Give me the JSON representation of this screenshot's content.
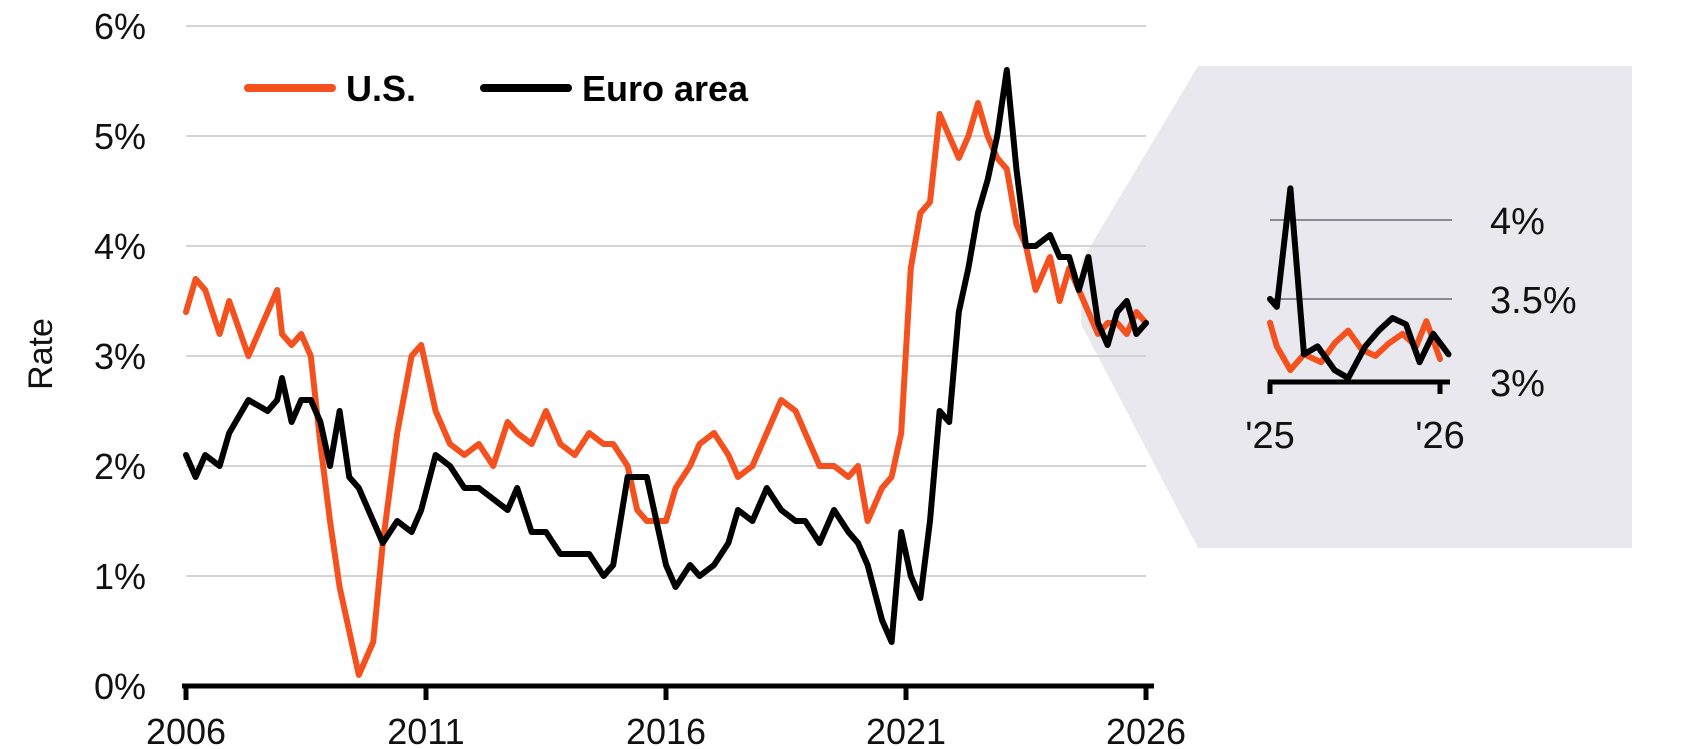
{
  "chart_data": [
    {
      "type": "line",
      "ylabel": "Rate",
      "xlim": [
        2006,
        2026
      ],
      "ylim": [
        0,
        6
      ],
      "x_ticks": [
        2006,
        2011,
        2016,
        2021,
        2026
      ],
      "x_tick_labels": [
        "2006",
        "2011",
        "2016",
        "2021",
        "2026"
      ],
      "y_ticks": [
        0,
        1,
        2,
        3,
        4,
        5,
        6
      ],
      "y_tick_labels": [
        "0%",
        "1%",
        "2%",
        "3%",
        "4%",
        "5%",
        "6%"
      ],
      "grid": true,
      "legend_position": "top-left",
      "series": [
        {
          "name": "U.S.",
          "color": "#f4511e",
          "points": [
            [
              2006.0,
              3.4
            ],
            [
              2006.2,
              3.7
            ],
            [
              2006.4,
              3.6
            ],
            [
              2006.7,
              3.2
            ],
            [
              2006.9,
              3.5
            ],
            [
              2007.3,
              3.0
            ],
            [
              2007.7,
              3.4
            ],
            [
              2007.9,
              3.6
            ],
            [
              2008.0,
              3.2
            ],
            [
              2008.2,
              3.1
            ],
            [
              2008.4,
              3.2
            ],
            [
              2008.6,
              3.0
            ],
            [
              2008.8,
              2.2
            ],
            [
              2009.0,
              1.5
            ],
            [
              2009.2,
              0.9
            ],
            [
              2009.4,
              0.5
            ],
            [
              2009.6,
              0.1
            ],
            [
              2009.9,
              0.4
            ],
            [
              2010.1,
              1.3
            ],
            [
              2010.4,
              2.3
            ],
            [
              2010.7,
              3.0
            ],
            [
              2010.9,
              3.1
            ],
            [
              2011.2,
              2.5
            ],
            [
              2011.5,
              2.2
            ],
            [
              2011.8,
              2.1
            ],
            [
              2012.1,
              2.2
            ],
            [
              2012.4,
              2.0
            ],
            [
              2012.7,
              2.4
            ],
            [
              2012.9,
              2.3
            ],
            [
              2013.2,
              2.2
            ],
            [
              2013.5,
              2.5
            ],
            [
              2013.8,
              2.2
            ],
            [
              2014.1,
              2.1
            ],
            [
              2014.4,
              2.3
            ],
            [
              2014.7,
              2.2
            ],
            [
              2014.9,
              2.2
            ],
            [
              2015.2,
              2.0
            ],
            [
              2015.4,
              1.6
            ],
            [
              2015.6,
              1.5
            ],
            [
              2016.0,
              1.5
            ],
            [
              2016.2,
              1.8
            ],
            [
              2016.5,
              2.0
            ],
            [
              2016.7,
              2.2
            ],
            [
              2017.0,
              2.3
            ],
            [
              2017.3,
              2.1
            ],
            [
              2017.5,
              1.9
            ],
            [
              2017.8,
              2.0
            ],
            [
              2018.1,
              2.3
            ],
            [
              2018.4,
              2.6
            ],
            [
              2018.7,
              2.5
            ],
            [
              2018.9,
              2.3
            ],
            [
              2019.2,
              2.0
            ],
            [
              2019.5,
              2.0
            ],
            [
              2019.8,
              1.9
            ],
            [
              2020.0,
              2.0
            ],
            [
              2020.2,
              1.5
            ],
            [
              2020.5,
              1.8
            ],
            [
              2020.7,
              1.9
            ],
            [
              2020.9,
              2.3
            ],
            [
              2021.1,
              3.8
            ],
            [
              2021.3,
              4.3
            ],
            [
              2021.5,
              4.4
            ],
            [
              2021.7,
              5.2
            ],
            [
              2021.9,
              5.0
            ],
            [
              2022.1,
              4.8
            ],
            [
              2022.3,
              5.0
            ],
            [
              2022.5,
              5.3
            ],
            [
              2022.7,
              5.0
            ],
            [
              2022.9,
              4.8
            ],
            [
              2023.1,
              4.7
            ],
            [
              2023.3,
              4.2
            ],
            [
              2023.5,
              4.0
            ],
            [
              2023.7,
              3.6
            ],
            [
              2024.0,
              3.9
            ],
            [
              2024.2,
              3.5
            ],
            [
              2024.4,
              3.8
            ],
            [
              2024.6,
              3.6
            ],
            [
              2024.8,
              3.4
            ],
            [
              2025.0,
              3.2
            ],
            [
              2025.2,
              3.3
            ],
            [
              2025.4,
              3.3
            ],
            [
              2025.6,
              3.2
            ],
            [
              2025.8,
              3.4
            ],
            [
              2026.0,
              3.3
            ]
          ]
        },
        {
          "name": "Euro area",
          "color": "#000000",
          "points": [
            [
              2006.0,
              2.1
            ],
            [
              2006.2,
              1.9
            ],
            [
              2006.4,
              2.1
            ],
            [
              2006.7,
              2.0
            ],
            [
              2006.9,
              2.3
            ],
            [
              2007.3,
              2.6
            ],
            [
              2007.7,
              2.5
            ],
            [
              2007.9,
              2.6
            ],
            [
              2008.0,
              2.8
            ],
            [
              2008.2,
              2.4
            ],
            [
              2008.4,
              2.6
            ],
            [
              2008.6,
              2.6
            ],
            [
              2008.8,
              2.4
            ],
            [
              2009.0,
              2.0
            ],
            [
              2009.2,
              2.5
            ],
            [
              2009.4,
              1.9
            ],
            [
              2009.6,
              1.8
            ],
            [
              2009.9,
              1.5
            ],
            [
              2010.1,
              1.3
            ],
            [
              2010.4,
              1.5
            ],
            [
              2010.7,
              1.4
            ],
            [
              2010.9,
              1.6
            ],
            [
              2011.2,
              2.1
            ],
            [
              2011.5,
              2.0
            ],
            [
              2011.8,
              1.8
            ],
            [
              2012.1,
              1.8
            ],
            [
              2012.4,
              1.7
            ],
            [
              2012.7,
              1.6
            ],
            [
              2012.9,
              1.8
            ],
            [
              2013.2,
              1.4
            ],
            [
              2013.5,
              1.4
            ],
            [
              2013.8,
              1.2
            ],
            [
              2014.1,
              1.2
            ],
            [
              2014.4,
              1.2
            ],
            [
              2014.7,
              1.0
            ],
            [
              2014.9,
              1.1
            ],
            [
              2015.2,
              1.9
            ],
            [
              2015.4,
              1.9
            ],
            [
              2015.6,
              1.9
            ],
            [
              2016.0,
              1.1
            ],
            [
              2016.2,
              0.9
            ],
            [
              2016.5,
              1.1
            ],
            [
              2016.7,
              1.0
            ],
            [
              2017.0,
              1.1
            ],
            [
              2017.3,
              1.3
            ],
            [
              2017.5,
              1.6
            ],
            [
              2017.8,
              1.5
            ],
            [
              2018.1,
              1.8
            ],
            [
              2018.4,
              1.6
            ],
            [
              2018.7,
              1.5
            ],
            [
              2018.9,
              1.5
            ],
            [
              2019.2,
              1.3
            ],
            [
              2019.5,
              1.6
            ],
            [
              2019.8,
              1.4
            ],
            [
              2020.0,
              1.3
            ],
            [
              2020.2,
              1.1
            ],
            [
              2020.5,
              0.6
            ],
            [
              2020.7,
              0.4
            ],
            [
              2020.9,
              1.4
            ],
            [
              2021.1,
              1.0
            ],
            [
              2021.3,
              0.8
            ],
            [
              2021.5,
              1.5
            ],
            [
              2021.7,
              2.5
            ],
            [
              2021.9,
              2.4
            ],
            [
              2022.1,
              3.4
            ],
            [
              2022.3,
              3.8
            ],
            [
              2022.5,
              4.3
            ],
            [
              2022.7,
              4.6
            ],
            [
              2022.9,
              5.0
            ],
            [
              2023.1,
              5.6
            ],
            [
              2023.3,
              4.7
            ],
            [
              2023.5,
              4.0
            ],
            [
              2023.7,
              4.0
            ],
            [
              2024.0,
              4.1
            ],
            [
              2024.2,
              3.9
            ],
            [
              2024.4,
              3.9
            ],
            [
              2024.6,
              3.6
            ],
            [
              2024.8,
              3.9
            ],
            [
              2025.0,
              3.3
            ],
            [
              2025.2,
              3.1
            ],
            [
              2025.4,
              3.4
            ],
            [
              2025.6,
              3.5
            ],
            [
              2025.8,
              3.2
            ],
            [
              2026.0,
              3.3
            ]
          ]
        }
      ]
    },
    {
      "type": "line",
      "title": "",
      "xlim": [
        2025,
        2026
      ],
      "ylim": [
        3,
        4
      ],
      "x_ticks": [
        2025,
        2026
      ],
      "x_tick_labels": [
        "'25",
        "'26"
      ],
      "y_ticks": [
        3,
        3.5,
        4
      ],
      "y_tick_labels": [
        "3%",
        "3.5%",
        "4%"
      ],
      "grid_lines_at": [
        3.5,
        4
      ],
      "series": [
        {
          "name": "U.S.",
          "color": "#f4511e",
          "points": [
            [
              2025.0,
              3.35
            ],
            [
              2025.04,
              3.2
            ],
            [
              2025.12,
              3.05
            ],
            [
              2025.2,
              3.15
            ],
            [
              2025.3,
              3.1
            ],
            [
              2025.38,
              3.22
            ],
            [
              2025.46,
              3.3
            ],
            [
              2025.54,
              3.18
            ],
            [
              2025.62,
              3.14
            ],
            [
              2025.7,
              3.22
            ],
            [
              2025.78,
              3.28
            ],
            [
              2025.86,
              3.2
            ],
            [
              2025.92,
              3.36
            ],
            [
              2026.0,
              3.12
            ]
          ]
        },
        {
          "name": "Euro area",
          "color": "#000000",
          "points": [
            [
              2025.0,
              3.5
            ],
            [
              2025.04,
              3.45
            ],
            [
              2025.12,
              4.2
            ],
            [
              2025.2,
              3.15
            ],
            [
              2025.28,
              3.2
            ],
            [
              2025.38,
              3.05
            ],
            [
              2025.46,
              3.0
            ],
            [
              2025.56,
              3.2
            ],
            [
              2025.64,
              3.3
            ],
            [
              2025.72,
              3.38
            ],
            [
              2025.8,
              3.34
            ],
            [
              2025.88,
              3.1
            ],
            [
              2025.96,
              3.28
            ],
            [
              2026.05,
              3.15
            ]
          ]
        }
      ]
    }
  ]
}
